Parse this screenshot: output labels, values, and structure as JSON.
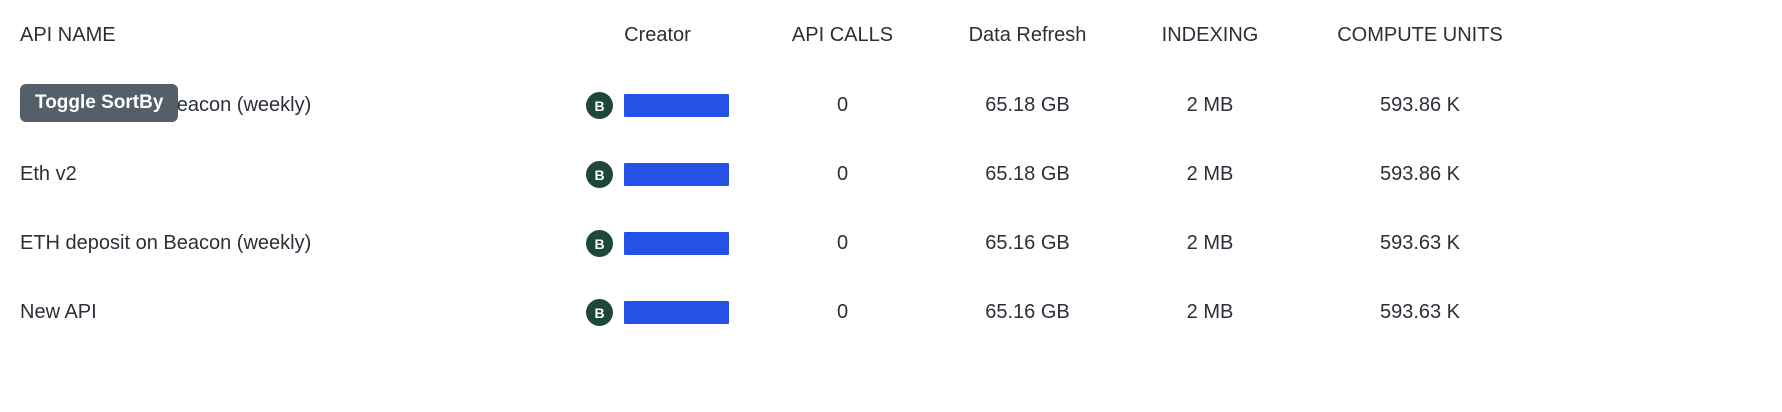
{
  "tooltip": {
    "label": "Toggle SortBy"
  },
  "colors": {
    "accent_blue": "#2451e6",
    "avatar_green": "#1e4738",
    "tooltip_bg": "#545f69",
    "text": "#2b2f38"
  },
  "table": {
    "columns": [
      {
        "label": "API NAME"
      },
      {
        "label": "Creator"
      },
      {
        "label": "API CALLS"
      },
      {
        "label": "Data Refresh"
      },
      {
        "label": "INDEXING"
      },
      {
        "label": "COMPUTE UNITS"
      }
    ],
    "rows": [
      {
        "api_name": "ETH deposit on Beacon (weekly)",
        "creator_initial": "B",
        "api_calls": "0",
        "data_refresh": "65.18 GB",
        "indexing": "2 MB",
        "compute_units": "593.86 K"
      },
      {
        "api_name": "Eth v2",
        "creator_initial": "B",
        "api_calls": "0",
        "data_refresh": "65.18 GB",
        "indexing": "2 MB",
        "compute_units": "593.86 K"
      },
      {
        "api_name": "ETH deposit on Beacon (weekly)",
        "creator_initial": "B",
        "api_calls": "0",
        "data_refresh": "65.16 GB",
        "indexing": "2 MB",
        "compute_units": "593.63 K"
      },
      {
        "api_name": "New API",
        "creator_initial": "B",
        "api_calls": "0",
        "data_refresh": "65.16 GB",
        "indexing": "2 MB",
        "compute_units": "593.63 K"
      }
    ]
  }
}
